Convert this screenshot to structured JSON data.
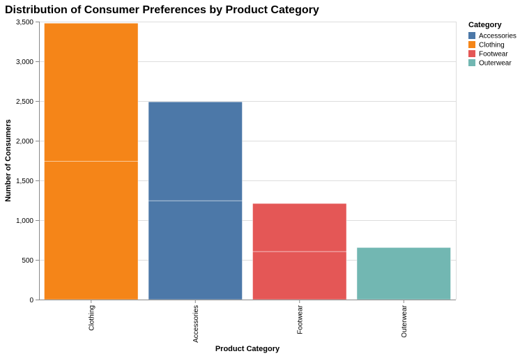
{
  "chart_data": {
    "type": "bar",
    "title": "Distribution of Consumer Preferences by Product Category",
    "xlabel": "Product Category",
    "ylabel": "Number of Consumers",
    "ylim": [
      0,
      3500
    ],
    "yticks": [
      0,
      500,
      1000,
      1500,
      2000,
      2500,
      3000,
      3500
    ],
    "ytick_labels": [
      "0",
      "500",
      "1,000",
      "1,500",
      "2,000",
      "2,500",
      "3,000",
      "3,500"
    ],
    "categories": [
      "Clothing",
      "Accessories",
      "Footwear",
      "Outerwear"
    ],
    "stacks": [
      {
        "category": "Clothing",
        "segments": [
          1740,
          1740
        ],
        "total": 3480
      },
      {
        "category": "Accessories",
        "segments": [
          1245,
          1245
        ],
        "total": 2490
      },
      {
        "category": "Footwear",
        "segments": [
          605,
          605
        ],
        "total": 1210
      },
      {
        "category": "Outerwear",
        "segments": [
          655
        ],
        "total": 655
      }
    ],
    "grid": true,
    "legend": {
      "title": "Category",
      "position": "top-right",
      "items": [
        {
          "label": "Accessories",
          "color": "#4c78a8"
        },
        {
          "label": "Clothing",
          "color": "#f58518"
        },
        {
          "label": "Footwear",
          "color": "#e45756"
        },
        {
          "label": "Outerwear",
          "color": "#72b7b2"
        }
      ]
    }
  }
}
